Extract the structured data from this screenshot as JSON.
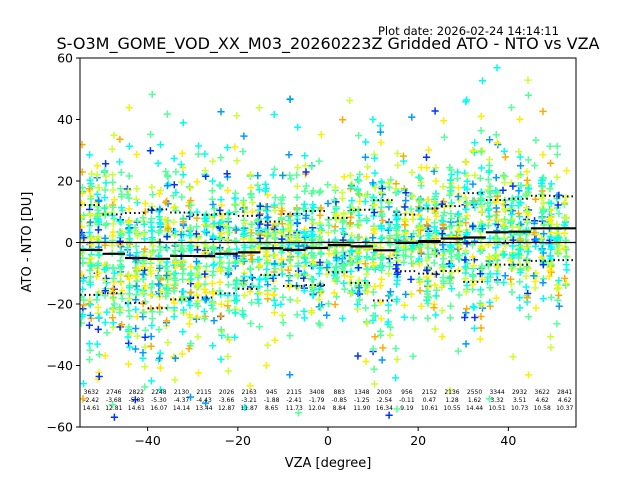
{
  "plot_date": "Plot date: 2026-02-24 14:14:11",
  "chart_data": {
    "type": "scatter",
    "title": "S-O3M_GOME_VOD_XX_M03_20260223Z Gridded ATO - NTO vs VZA",
    "xlabel": "VZA [degree]",
    "ylabel": "ATO - NTO [DU]",
    "xlim": [
      -55,
      55
    ],
    "ylim": [
      -60,
      60
    ],
    "xticks": [
      -40,
      -20,
      0,
      20,
      40
    ],
    "yticks": [
      -60,
      -40,
      -20,
      0,
      20,
      40,
      60
    ],
    "xtick_labels": [
      "−40",
      "−20",
      "0",
      "20",
      "40"
    ],
    "ytick_labels": [
      "−60",
      "−40",
      "−20",
      "0",
      "20",
      "40",
      "60"
    ],
    "marker": "+",
    "colormap_colors": [
      "#0033ff",
      "#0099ff",
      "#00ffee",
      "#55ff99",
      "#ccff33",
      "#ffee00",
      "#ffaa00"
    ],
    "bin_centers": [
      -52.5,
      -47.5,
      -42.5,
      -37.5,
      -32.5,
      -27.5,
      -22.5,
      -17.5,
      -12.5,
      -7.5,
      -2.5,
      2.5,
      7.5,
      12.5,
      17.5,
      22.5,
      27.5,
      32.5,
      37.5,
      42.5,
      47.5,
      52.5
    ],
    "counts": [
      "3632",
      "2746",
      "2822",
      "2248",
      "2130",
      "2115",
      "2026",
      "2163",
      "945",
      "2115",
      "3408",
      "883",
      "1348",
      "2003",
      "956",
      "2152",
      "2136",
      "2550",
      "3344",
      "2932",
      "3622",
      "2841"
    ],
    "means": [
      "-2.42",
      "-3.68",
      "-5.03",
      "-5.30",
      "-4.37",
      "-4.43",
      "-3.66",
      "-3.21",
      "-1.88",
      "-2.41",
      "-1.79",
      "-0.85",
      "-1.25",
      "-2.54",
      "-0.11",
      "0.47",
      "1.28",
      "1.62",
      "3.32",
      "3.51",
      "4.62",
      "4.62"
    ],
    "stddevs": [
      "14.61",
      "12.81",
      "14.61",
      "16.07",
      "14.14",
      "13.44",
      "12.87",
      "11.87",
      "8.65",
      "11.73",
      "12.04",
      "8.84",
      "11.90",
      "16.34",
      "9.19",
      "10.61",
      "10.55",
      "14.44",
      "10.51",
      "10.73",
      "10.58",
      "10.37"
    ],
    "mean_values": [
      -2.42,
      -3.68,
      -5.03,
      -5.3,
      -4.37,
      -4.43,
      -3.66,
      -3.21,
      -1.88,
      -2.41,
      -1.79,
      -0.85,
      -1.25,
      -2.54,
      -0.11,
      0.47,
      1.28,
      1.62,
      3.32,
      3.51,
      4.62,
      4.62
    ],
    "std_values": [
      14.61,
      12.81,
      14.61,
      16.07,
      14.14,
      13.44,
      12.87,
      11.87,
      8.65,
      11.73,
      12.04,
      8.84,
      11.9,
      16.34,
      9.19,
      10.61,
      10.55,
      14.44,
      10.51,
      10.73,
      10.58,
      10.37
    ],
    "zero_line": 0,
    "legend": "none"
  }
}
